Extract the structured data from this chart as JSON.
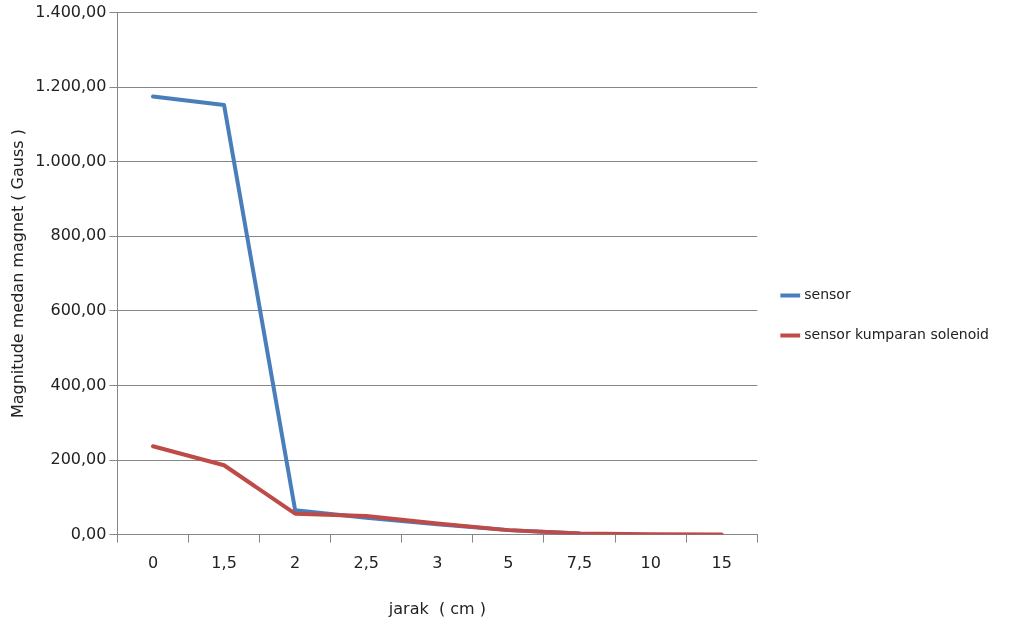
{
  "chart_data": {
    "type": "line",
    "xlabel": "jarak  ( cm )",
    "ylabel": "Magnitude medan magnet ( Gauss )",
    "categories": [
      "0",
      "1,5",
      "2",
      "2,5",
      "3",
      "5",
      "7,5",
      "10",
      "15"
    ],
    "series": [
      {
        "name": "sensor",
        "color": "#4a7ebb",
        "values": [
          1175,
          1152,
          65,
          45,
          28,
          12,
          3,
          null,
          null
        ]
      },
      {
        "name": "sensor kumparan solenoid",
        "color": "#be4b48",
        "values": [
          237,
          186,
          56,
          50,
          30,
          12,
          3,
          1,
          0
        ]
      }
    ],
    "ylim": [
      0,
      1400
    ],
    "yticks": [
      {
        "value": 0,
        "label": "0,00"
      },
      {
        "value": 200,
        "label": "200,00"
      },
      {
        "value": 400,
        "label": "400,00"
      },
      {
        "value": 600,
        "label": "600,00"
      },
      {
        "value": 800,
        "label": "800,00"
      },
      {
        "value": 1000,
        "label": "1.000,00"
      },
      {
        "value": 1200,
        "label": "1.200,00"
      },
      {
        "value": 1400,
        "label": "1.400,00"
      }
    ],
    "grid": "y",
    "legend": "right",
    "marker": "none",
    "line_style": "solid"
  }
}
